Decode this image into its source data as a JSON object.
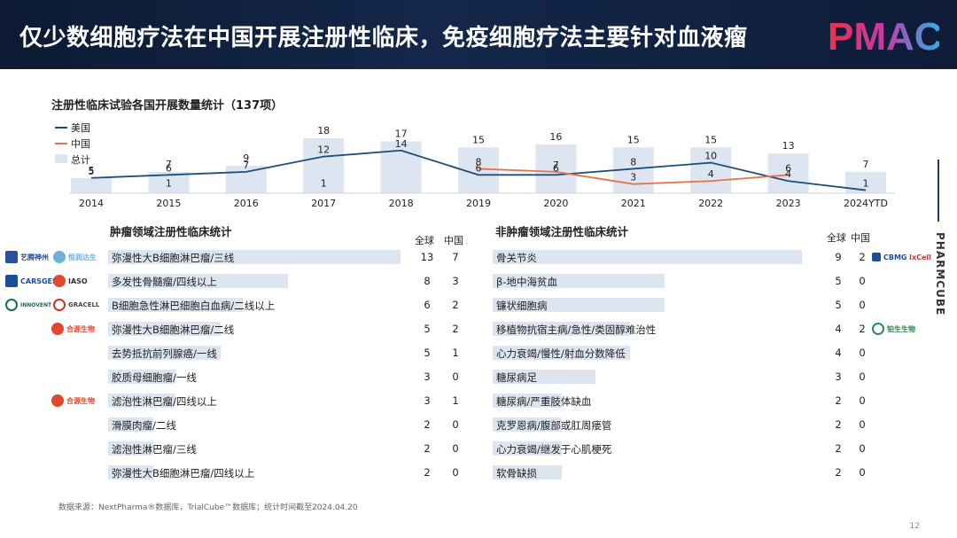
{
  "header": {
    "title": "仅少数细胞疗法在中国开展注册性临床，免疫细胞疗法主要针对血液瘤",
    "logo_text": "PMAC"
  },
  "side_brand": "PHARMCUBE",
  "page_number": "12",
  "footnote": "数据来源：NextPharma®数据库，TrialCube™数据库；统计时间截至2024.04.20",
  "legend": {
    "us": "美国",
    "china": "中国",
    "total": "总计"
  },
  "colors": {
    "us": "#1f4e79",
    "china": "#e8734a",
    "total_bar": "#dde5f0",
    "header_bg": "#0f1f3d"
  },
  "chart_data": [
    {
      "type": "bar+line",
      "title": "注册性临床试验各国开展数量统计（137项）",
      "categories": [
        "2014",
        "2015",
        "2016",
        "2017",
        "2018",
        "2019",
        "2020",
        "2021",
        "2022",
        "2023",
        "2024YTD"
      ],
      "series": [
        {
          "name": "总计",
          "type": "bar",
          "values": [
            5,
            7,
            9,
            18,
            17,
            15,
            16,
            15,
            15,
            13,
            7
          ]
        },
        {
          "name": "美国",
          "type": "line",
          "values": [
            5,
            6,
            7,
            12,
            14,
            6,
            6,
            8,
            10,
            4,
            1
          ]
        },
        {
          "name": "中国",
          "type": "line",
          "values": [
            null,
            1,
            null,
            1,
            null,
            8,
            7,
            3,
            4,
            6,
            null
          ]
        }
      ],
      "ylim": [
        0,
        18
      ]
    },
    {
      "type": "table",
      "title": "肿瘤领域注册性临床统计",
      "columns": [
        "全球",
        "中国"
      ],
      "rows": [
        {
          "label": "弥漫性大B细胞淋巴瘤/三线",
          "global": 13,
          "china": 7
        },
        {
          "label": "多发性骨髓瘤/四线以上",
          "global": 8,
          "china": 3
        },
        {
          "label": "B细胞急性淋巴细胞白血病/二线以上",
          "global": 6,
          "china": 2
        },
        {
          "label": "弥漫性大B细胞淋巴瘤/二线",
          "global": 5,
          "china": 2
        },
        {
          "label": "去势抵抗前列腺癌/一线",
          "global": 5,
          "china": 1
        },
        {
          "label": "胶质母细胞瘤/一线",
          "global": 3,
          "china": 0
        },
        {
          "label": "滤泡性淋巴瘤/四线以上",
          "global": 3,
          "china": 1
        },
        {
          "label": "滑膜肉瘤/二线",
          "global": 2,
          "china": 0
        },
        {
          "label": "滤泡性淋巴瘤/三线",
          "global": 2,
          "china": 0
        },
        {
          "label": "弥漫性大B细胞淋巴瘤/四线以上",
          "global": 2,
          "china": 0
        }
      ]
    },
    {
      "type": "table",
      "title": "非肿瘤领域注册性临床统计",
      "columns": [
        "全球",
        "中国"
      ],
      "rows": [
        {
          "label": "骨关节炎",
          "global": 9,
          "china": 2
        },
        {
          "label": "β-地中海贫血",
          "global": 5,
          "china": 0
        },
        {
          "label": "镰状细胞病",
          "global": 5,
          "china": 0
        },
        {
          "label": "移植物抗宿主病/急性/类固醇难治性",
          "global": 4,
          "china": 2
        },
        {
          "label": "心力衰竭/慢性/射血分数降低",
          "global": 4,
          "china": 0
        },
        {
          "label": "糖尿病足",
          "global": 3,
          "china": 0
        },
        {
          "label": "糖尿病/严重肢体缺血",
          "global": 2,
          "china": 0
        },
        {
          "label": "克罗恩病/腹部或肛周瘘管",
          "global": 2,
          "china": 0
        },
        {
          "label": "心力衰竭/继发于心肌梗死",
          "global": 2,
          "china": 0
        },
        {
          "label": "软骨缺损",
          "global": 2,
          "china": 0
        }
      ]
    }
  ],
  "company_logos": {
    "left": [
      {
        "text": "艺腾神州",
        "color": "#2a4f9e"
      },
      {
        "text": "恒润达生",
        "color": "#6db2d8"
      },
      {
        "text": "CARSGEN",
        "color": "#1b4d9b"
      },
      {
        "text": "IASO",
        "color": "#333333"
      },
      {
        "text": "INNOVENT",
        "color": "#1b6e4a"
      },
      {
        "text": "GRACELL",
        "color": "#444444"
      },
      {
        "text": "合源生物",
        "color": "#e0482f"
      },
      {
        "text": "合源生物",
        "color": "#e0482f"
      }
    ],
    "right": [
      {
        "text": "CBMG",
        "color": "#1b4d9b"
      },
      {
        "text": "IxCell",
        "color": "#c0392b"
      },
      {
        "text": "铂生生物",
        "color": "#2e8b57"
      }
    ]
  }
}
